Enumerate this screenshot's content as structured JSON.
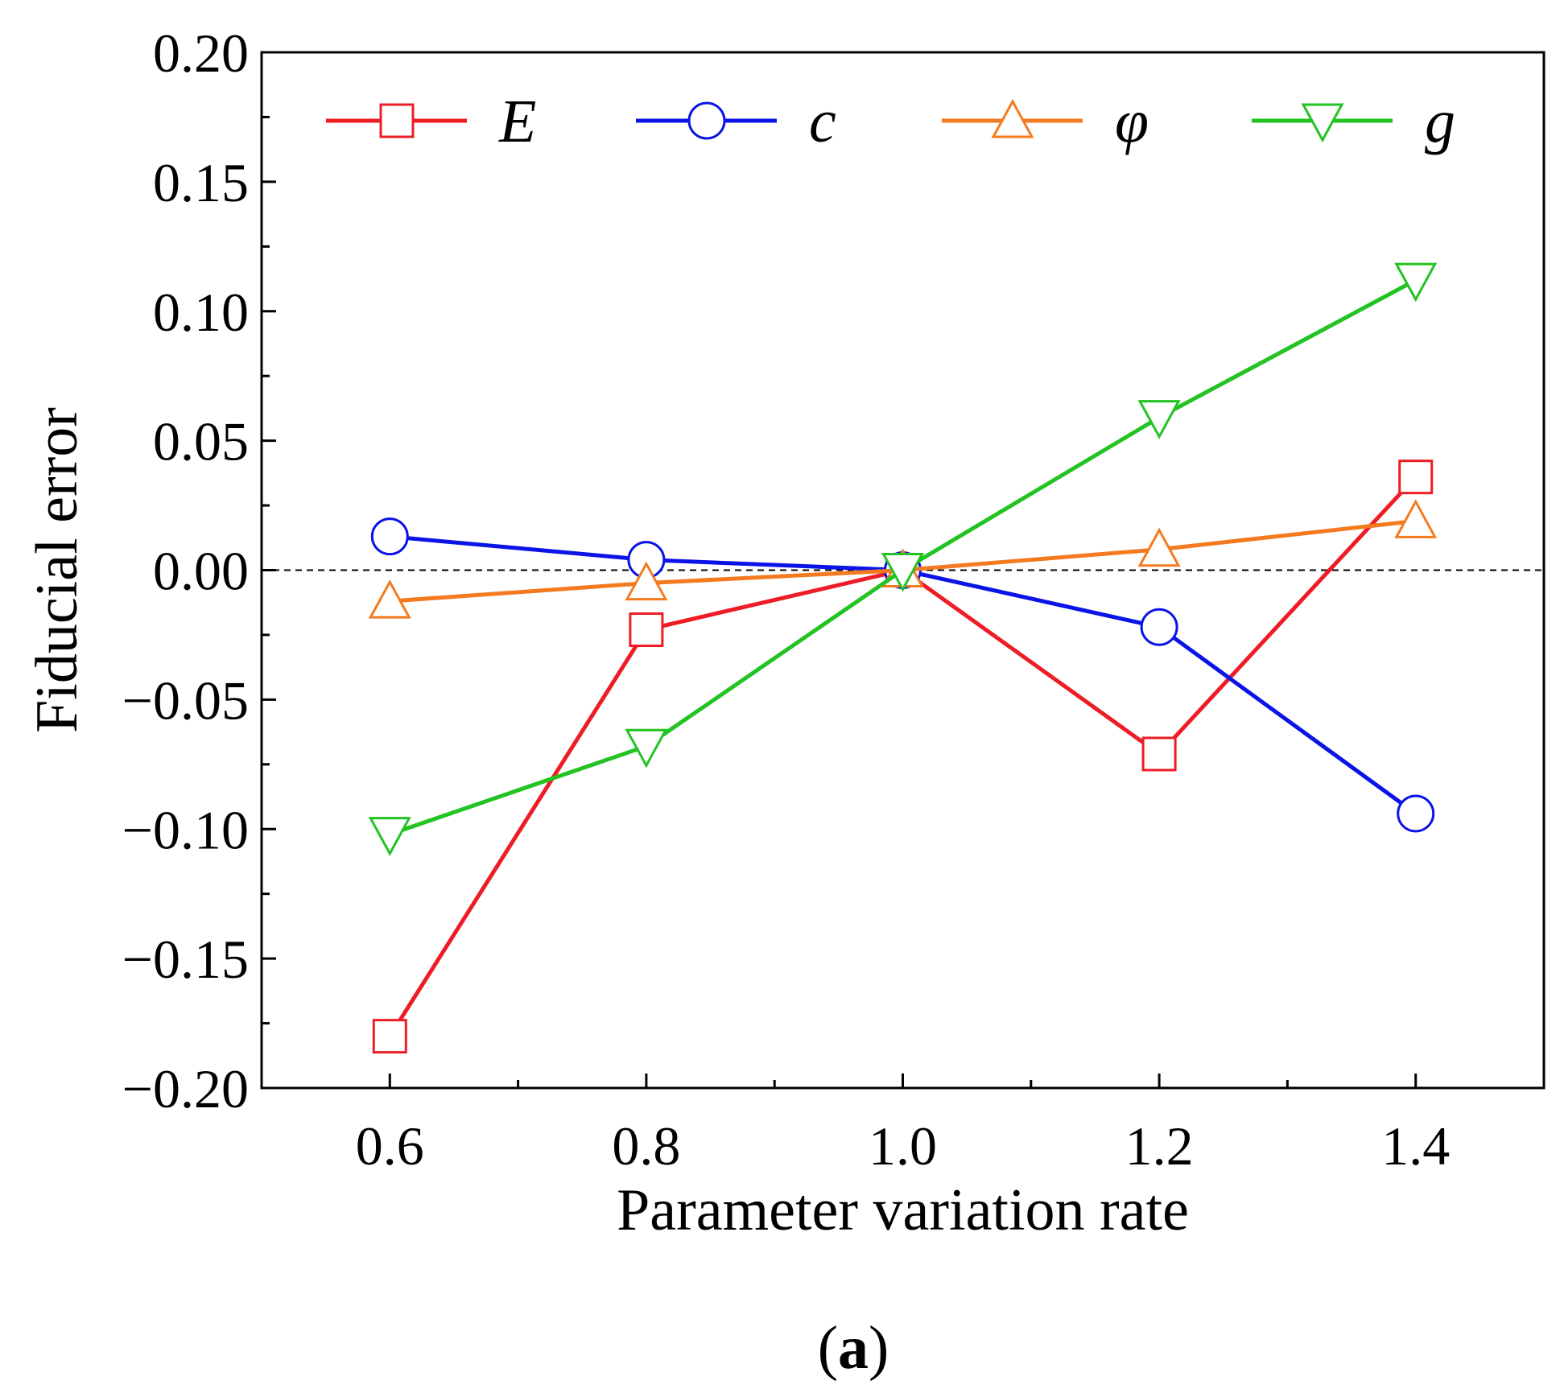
{
  "chart_data": {
    "type": "line",
    "xlabel": "Parameter variation rate",
    "ylabel": "Fiducial error",
    "xlim": [
      0.5,
      1.5
    ],
    "ylim": [
      -0.2,
      0.2
    ],
    "x": [
      0.6,
      0.8,
      1.0,
      1.2,
      1.4
    ],
    "x_tick_labels": [
      "0.6",
      "0.8",
      "1.0",
      "1.2",
      "1.4"
    ],
    "y_ticks": [
      0.2,
      0.15,
      0.1,
      0.05,
      0.0,
      -0.05,
      -0.1,
      -0.15,
      -0.2
    ],
    "y_tick_labels": [
      "0.20",
      "0.15",
      "0.10",
      "0.05",
      "0.00",
      "−0.05",
      "−0.10",
      "−0.15",
      "−0.20"
    ],
    "reference_line": 0.0,
    "legend_position": "top",
    "series": [
      {
        "name": "E",
        "color": "#ee1c25",
        "marker": "square",
        "values": [
          -0.18,
          -0.023,
          0.0,
          -0.071,
          0.036
        ]
      },
      {
        "name": "c",
        "color": "#0a14e6",
        "marker": "circle",
        "values": [
          0.013,
          0.004,
          0.0,
          -0.022,
          -0.094
        ]
      },
      {
        "name": "φ",
        "color": "#f47a20",
        "marker": "triangle-up",
        "values": [
          -0.012,
          -0.005,
          0.0,
          0.008,
          0.019
        ]
      },
      {
        "name": "g",
        "color": "#22c322",
        "marker": "triangle-down",
        "values": [
          -0.102,
          -0.068,
          0.0,
          0.059,
          0.112
        ]
      }
    ]
  },
  "caption": {
    "open": "(",
    "letter": "a",
    "close": ")"
  }
}
